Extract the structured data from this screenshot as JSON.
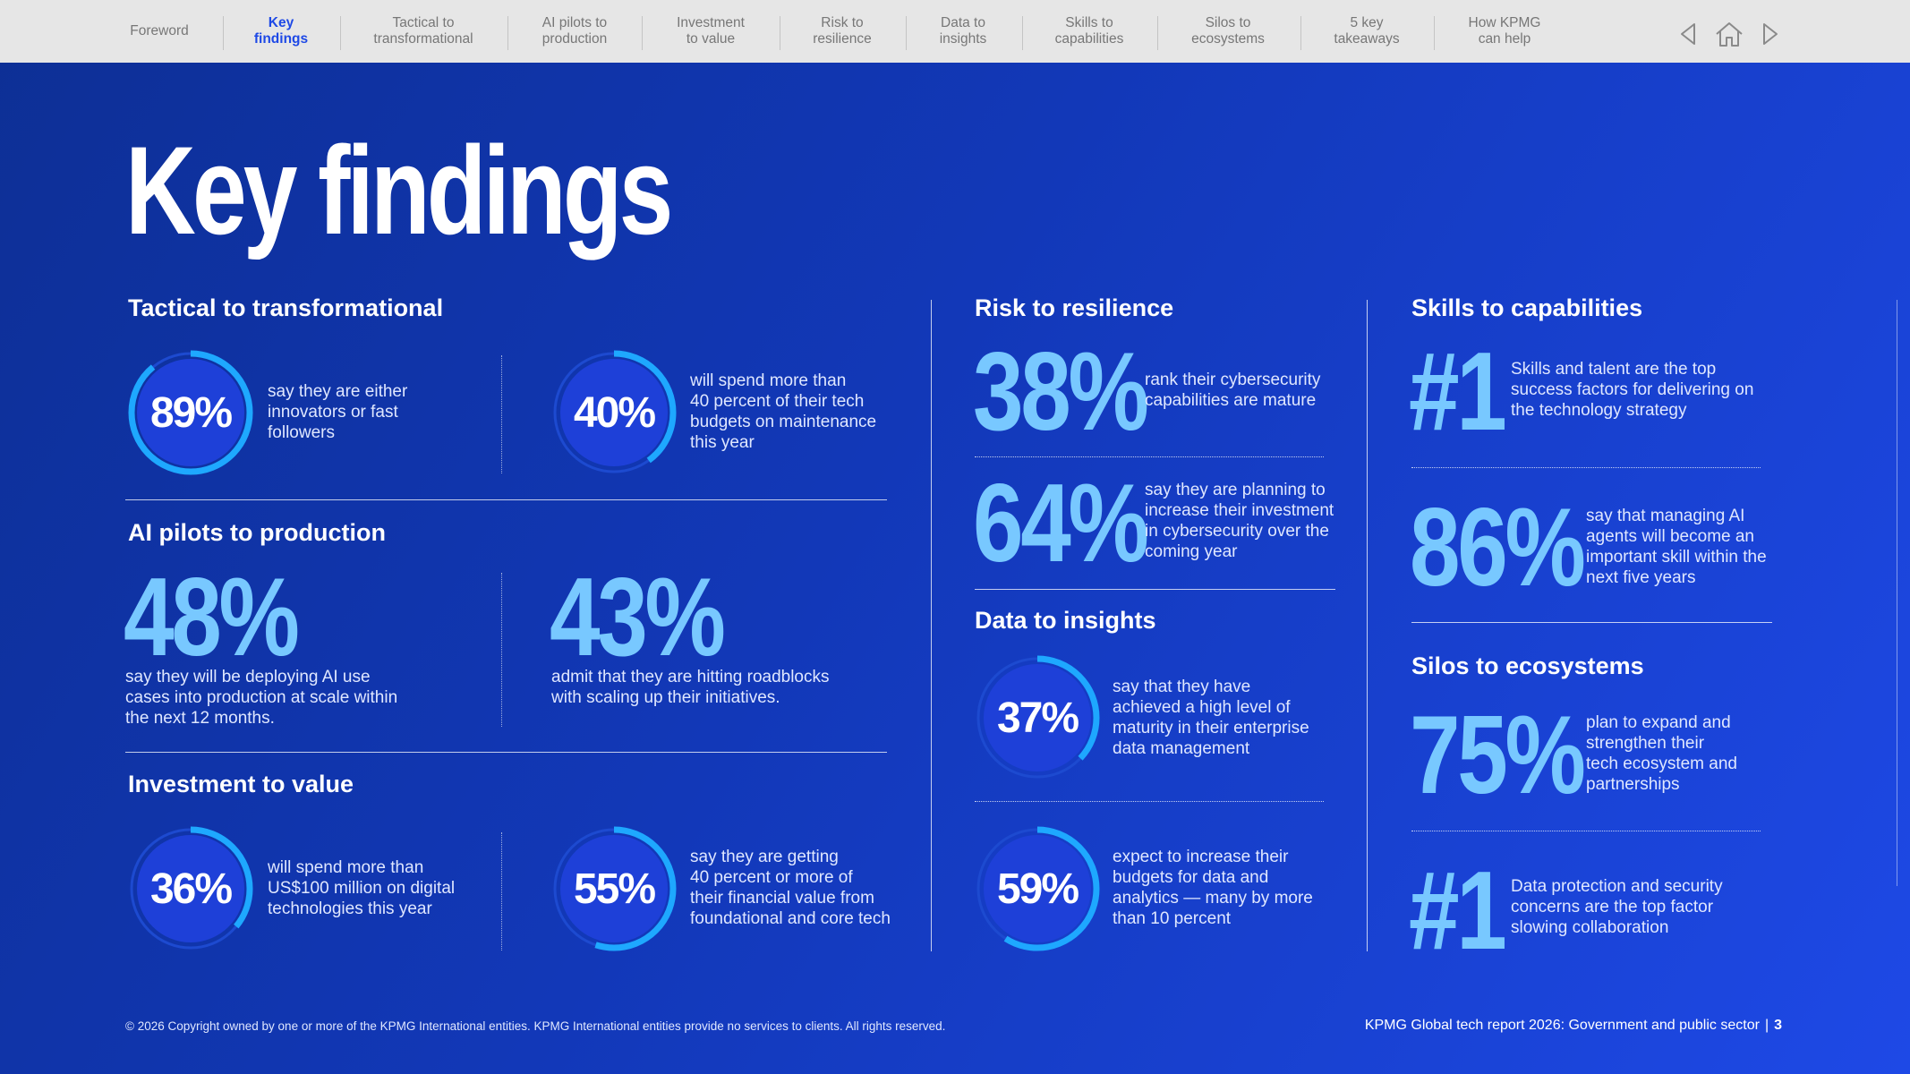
{
  "nav": {
    "items": [
      {
        "label": "Foreword"
      },
      {
        "label": "Key\nfindings"
      },
      {
        "label": "Tactical to\ntransformational"
      },
      {
        "label": "AI pilots to\nproduction"
      },
      {
        "label": "Investment\nto value"
      },
      {
        "label": "Risk to\nresilience"
      },
      {
        "label": "Data to\ninsights"
      },
      {
        "label": "Skills to\ncapabilities"
      },
      {
        "label": "Silos to\necosystems"
      },
      {
        "label": "5 key\ntakeaways"
      },
      {
        "label": "How KPMG\ncan help"
      }
    ],
    "active_index": 1,
    "icons": [
      "previous-arrow-icon",
      "home-icon",
      "next-arrow-icon"
    ]
  },
  "page_title": "Key findings",
  "colors": {
    "accent_light": "#78c8ff",
    "ring_active": "#1ea8ff",
    "ring_track": "#1d4ad0",
    "ring_fill": "#1e40d8",
    "nav_active": "#1e49e6",
    "background_dark": "#0d2f95",
    "background_bright": "#1e49e6"
  },
  "tactical": {
    "title": "Tactical to transformational",
    "stat1": {
      "value": "89%",
      "percent": 89,
      "desc": "say they are either\ninnovators or fast\nfollowers"
    },
    "stat2": {
      "value": "40%",
      "percent": 40,
      "desc": "will spend more than\n40 percent of their tech\nbudgets on maintenance\nthis year"
    }
  },
  "ai_pilots": {
    "title": "AI pilots to production",
    "stat1": {
      "value": "48%",
      "desc": "say they will be deploying AI use\ncases into production at scale within\nthe next 12 months."
    },
    "stat2": {
      "value": "43%",
      "desc": "admit that they are hitting roadblocks\nwith scaling up their initiatives."
    }
  },
  "investment": {
    "title": "Investment to value",
    "stat1": {
      "value": "36%",
      "percent": 36,
      "desc": "will spend more than\nUS$100 million on digital\ntechnologies this year"
    },
    "stat2": {
      "value": "55%",
      "percent": 55,
      "desc": "say they are getting\n40 percent or more of\ntheir financial value from\nfoundational and core tech"
    }
  },
  "risk": {
    "title": "Risk to resilience",
    "stat1": {
      "value": "38%",
      "desc": "rank their cybersecurity\ncapabilities are mature"
    },
    "stat2": {
      "value": "64%",
      "desc": "say they are planning to\nincrease their investment\nin cybersecurity over the\ncoming year"
    }
  },
  "data_insights": {
    "title": "Data to insights",
    "stat1": {
      "value": "37%",
      "percent": 37,
      "desc": "say that they have\nachieved a high level of\nmaturity in their enterprise\ndata management"
    },
    "stat2": {
      "value": "59%",
      "percent": 59,
      "desc": "expect to increase their\nbudgets for data and\nanalytics — many by more\nthan 10 percent"
    }
  },
  "skills": {
    "title": "Skills to capabilities",
    "stat1": {
      "value": "#1",
      "desc": "Skills and talent are the top\nsuccess factors for delivering on\nthe technology strategy"
    },
    "stat2": {
      "value": "86%",
      "desc": "say that managing AI\nagents will become an\nimportant skill within the\nnext five years"
    }
  },
  "silos": {
    "title": "Silos to ecosystems",
    "stat1": {
      "value": "75%",
      "desc": "plan to expand and\nstrengthen their\ntech ecosystem and\npartnerships"
    },
    "stat2": {
      "value": "#1",
      "desc": "Data protection and security\nconcerns are the top factor\nslowing collaboration"
    }
  },
  "footer": {
    "copyright": "© 2026 Copyright owned by one or more of the KPMG International entities. KPMG International entities provide no services to clients. All rights reserved.",
    "report": "KPMG Global tech report 2026: Government and public sector",
    "separator": "|",
    "page": "3"
  }
}
